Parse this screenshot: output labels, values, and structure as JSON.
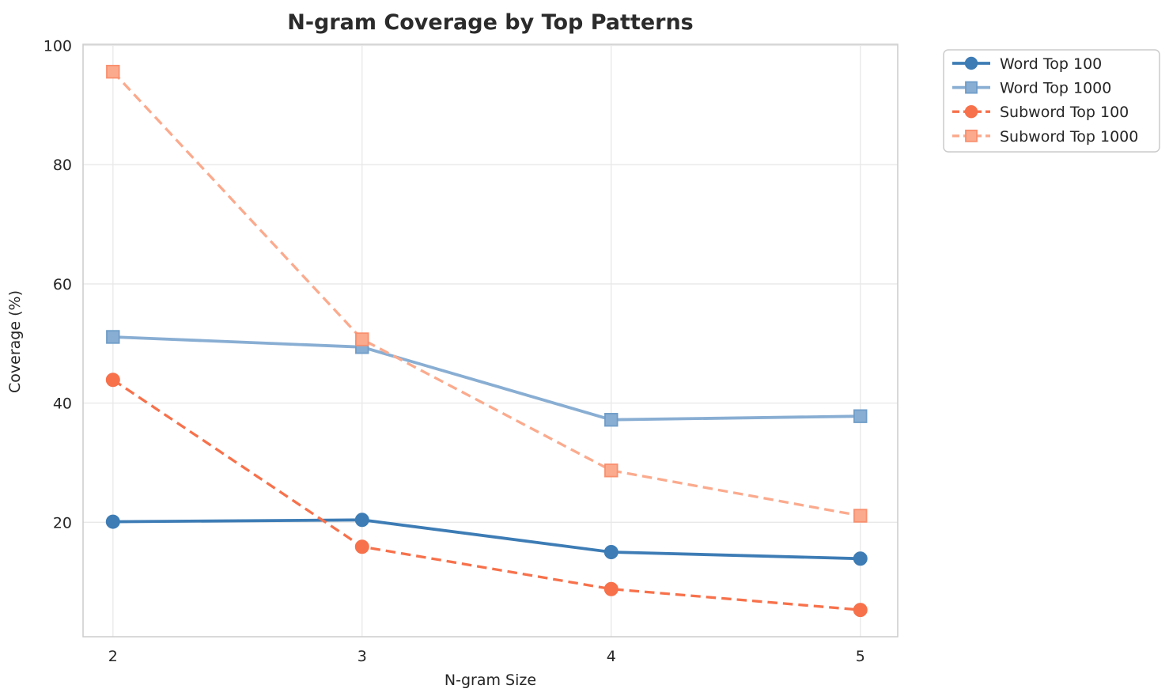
{
  "chart_data": {
    "type": "line",
    "title": "N-gram Coverage by Top Patterns",
    "xlabel": "N-gram Size",
    "ylabel": "Coverage (%)",
    "x": [
      2,
      3,
      4,
      5
    ],
    "x_tick_labels": [
      "2",
      "3",
      "4",
      "5"
    ],
    "y_ticks": [
      20,
      40,
      60,
      80,
      100
    ],
    "xlim": [
      1.88,
      5.15
    ],
    "ylim": [
      0.8,
      100.2
    ],
    "grid": true,
    "legend_position": "upper right, outside plot",
    "series": [
      {
        "name": "Word Top 100",
        "values": [
          20.1,
          20.4,
          15.0,
          13.9
        ],
        "color": "#3d7cb5",
        "edge_color": "#3d7cb5",
        "marker": "circle",
        "line_style": "solid"
      },
      {
        "name": "Word Top 1000",
        "values": [
          51.1,
          49.4,
          37.2,
          37.8
        ],
        "color": "#89aed3",
        "edge_color": "#6f9dc8",
        "marker": "square",
        "line_style": "solid"
      },
      {
        "name": "Subword Top 100",
        "values": [
          43.9,
          15.9,
          8.8,
          5.3
        ],
        "color": "#f7714b",
        "edge_color": "#f7714b",
        "marker": "circle",
        "line_style": "dashed"
      },
      {
        "name": "Subword Top 1000",
        "values": [
          95.6,
          50.7,
          28.7,
          21.1
        ],
        "color": "#fbaa8d",
        "edge_color": "#f98f6e",
        "marker": "square",
        "line_style": "dashed"
      }
    ],
    "style": {
      "background_color": "#ffffff",
      "grid_color": "#e8e8e8",
      "spine_color": "#cccccc",
      "legend_border_color": "#cccccc",
      "legend_background": "#ffffff",
      "title_color": "#2b2b2b",
      "text_color": "#262626"
    }
  }
}
